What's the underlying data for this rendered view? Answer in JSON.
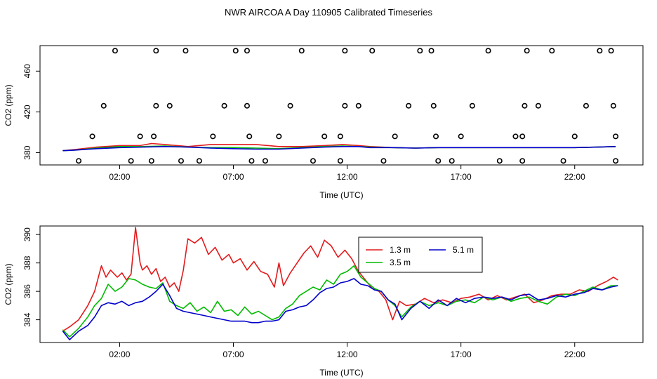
{
  "title": "NWR AIRCOA A  Day 110905  Calibrated Timeseries",
  "chart_data": [
    {
      "type": "scatter",
      "xlabel": "Time (UTC)",
      "ylabel": "CO2 (ppm)",
      "xlim": [
        -1.5,
        25
      ],
      "ylim": [
        368,
        485
      ],
      "xticks": [
        2,
        7,
        12,
        17,
        22
      ],
      "xtick_labels": [
        "02:00",
        "07:00",
        "12:00",
        "17:00",
        "22:00"
      ],
      "yticks": [
        380,
        420,
        460
      ],
      "ytick_labels": [
        "380",
        "420",
        "460"
      ],
      "grid": false,
      "points": [
        [
          0.2,
          372
        ],
        [
          0.8,
          396
        ],
        [
          1.3,
          426
        ],
        [
          1.8,
          480
        ],
        [
          2.5,
          372
        ],
        [
          2.9,
          396
        ],
        [
          3.4,
          372
        ],
        [
          3.5,
          396
        ],
        [
          3.6,
          426
        ],
        [
          3.6,
          480
        ],
        [
          4.2,
          426
        ],
        [
          4.7,
          372
        ],
        [
          4.9,
          480
        ],
        [
          5.5,
          372
        ],
        [
          6.1,
          396
        ],
        [
          6.6,
          426
        ],
        [
          7.1,
          480
        ],
        [
          7.6,
          480
        ],
        [
          7.6,
          426
        ],
        [
          7.7,
          396
        ],
        [
          7.8,
          372
        ],
        [
          8.4,
          372
        ],
        [
          9.0,
          396
        ],
        [
          9.5,
          426
        ],
        [
          10.0,
          480
        ],
        [
          10.5,
          372
        ],
        [
          11.0,
          396
        ],
        [
          11.7,
          396
        ],
        [
          11.7,
          372
        ],
        [
          11.9,
          426
        ],
        [
          11.9,
          480
        ],
        [
          12.5,
          426
        ],
        [
          13.1,
          480
        ],
        [
          13.6,
          372
        ],
        [
          14.1,
          396
        ],
        [
          14.7,
          426
        ],
        [
          15.2,
          480
        ],
        [
          15.7,
          480
        ],
        [
          15.8,
          426
        ],
        [
          15.9,
          396
        ],
        [
          16.0,
          372
        ],
        [
          16.6,
          372
        ],
        [
          17.0,
          396
        ],
        [
          17.5,
          426
        ],
        [
          18.2,
          480
        ],
        [
          18.7,
          372
        ],
        [
          19.4,
          396
        ],
        [
          19.7,
          396
        ],
        [
          19.8,
          426
        ],
        [
          19.9,
          480
        ],
        [
          19.7,
          372
        ],
        [
          20.4,
          426
        ],
        [
          21.0,
          480
        ],
        [
          21.5,
          372
        ],
        [
          22.0,
          396
        ],
        [
          22.5,
          426
        ],
        [
          23.1,
          480
        ],
        [
          23.6,
          480
        ],
        [
          23.7,
          426
        ],
        [
          23.8,
          396
        ],
        [
          23.8,
          372
        ]
      ],
      "series": [
        {
          "label": "1.3 m",
          "color": "#e31a1c",
          "x": [
            -0.5,
            0,
            1,
            2,
            2.9,
            3.4,
            4,
            5,
            6,
            7,
            8,
            9,
            10,
            11,
            11.8,
            12.5,
            13,
            14,
            15,
            16,
            17,
            18,
            19,
            20,
            21,
            22,
            23,
            23.8
          ],
          "y": [
            382,
            383,
            385.5,
            387,
            387,
            389,
            388,
            386,
            388,
            388,
            388,
            386,
            386,
            387,
            388,
            387,
            386,
            385,
            384.5,
            385,
            385,
            385,
            385,
            385,
            385,
            385,
            385.5,
            386
          ]
        },
        {
          "label": "3.5 m",
          "color": "#00bb00",
          "x": [
            -0.5,
            0,
            1,
            2,
            3,
            4,
            5,
            6,
            7,
            8,
            9,
            10,
            11,
            11.8,
            12.5,
            13,
            14,
            15,
            16,
            17,
            18,
            19,
            20,
            21,
            22,
            23,
            23.8
          ],
          "y": [
            382,
            382.5,
            384.5,
            386,
            386,
            386.5,
            385.5,
            385,
            385,
            384.5,
            384,
            385,
            386,
            386.5,
            386,
            385.5,
            385,
            384.5,
            385,
            385,
            385,
            385,
            385,
            385,
            385,
            385.5,
            386
          ]
        },
        {
          "label": "5.1 m",
          "color": "#0000cc",
          "x": [
            -0.5,
            0,
            1,
            2,
            3,
            4,
            5,
            6,
            7,
            8,
            9,
            10,
            11,
            11.8,
            12.5,
            13,
            14,
            15,
            16,
            17,
            18,
            19,
            20,
            21,
            22,
            23,
            23.8
          ],
          "y": [
            382,
            382.5,
            384,
            385,
            385.5,
            386,
            385.5,
            384.5,
            384,
            383.5,
            383.5,
            384.5,
            385.5,
            386,
            386,
            385,
            385,
            384.5,
            385,
            385,
            385,
            385,
            385,
            385,
            385,
            385.5,
            386
          ]
        }
      ]
    },
    {
      "type": "line",
      "xlabel": "Time (UTC)",
      "ylabel": "CO2 (ppm)",
      "xlim": [
        -1.5,
        25
      ],
      "ylim": [
        382.4,
        390.6
      ],
      "xticks": [
        2,
        7,
        12,
        17,
        22
      ],
      "xtick_labels": [
        "02:00",
        "07:00",
        "12:00",
        "17:00",
        "22:00"
      ],
      "yticks": [
        384,
        386,
        388,
        390
      ],
      "ytick_labels": [
        "384",
        "386",
        "388",
        "390"
      ],
      "grid": false,
      "legend": [
        {
          "label": "1.3 m",
          "color": "#e31a1c"
        },
        {
          "label": "5.1 m",
          "color": "#0000cc"
        },
        {
          "label": "3.5 m",
          "color": "#00bb00"
        }
      ],
      "series": [
        {
          "name": "1.3 m",
          "color": "#e31a1c",
          "x": [
            -0.5,
            -0.2,
            0.2,
            0.6,
            0.9,
            1.2,
            1.4,
            1.6,
            1.9,
            2.1,
            2.3,
            2.5,
            2.7,
            2.9,
            3.0,
            3.2,
            3.4,
            3.6,
            3.8,
            4.0,
            4.2,
            4.4,
            4.6,
            4.8,
            5.0,
            5.3,
            5.6,
            5.9,
            6.2,
            6.5,
            6.8,
            7.0,
            7.3,
            7.6,
            7.9,
            8.2,
            8.5,
            8.8,
            9.0,
            9.2,
            9.5,
            9.8,
            10.1,
            10.4,
            10.7,
            11.0,
            11.3,
            11.6,
            11.9,
            12.2,
            12.5,
            12.8,
            13.1,
            13.4,
            13.7,
            14.0,
            14.3,
            14.6,
            15.0,
            15.4,
            15.8,
            16.2,
            16.6,
            17.0,
            17.4,
            17.8,
            18.2,
            18.6,
            19.0,
            19.4,
            19.8,
            20.2,
            20.6,
            21.0,
            21.4,
            21.8,
            22.2,
            22.6,
            23.0,
            23.4,
            23.7,
            23.9
          ],
          "y": [
            383.2,
            383.5,
            384.0,
            385.0,
            386.0,
            387.8,
            387.0,
            387.5,
            387.0,
            387.3,
            386.8,
            387.2,
            390.5,
            388.0,
            387.5,
            387.8,
            387.2,
            387.6,
            386.7,
            387.0,
            386.3,
            386.6,
            386.0,
            387.5,
            389.7,
            389.4,
            389.8,
            388.6,
            389.1,
            388.2,
            388.6,
            388.0,
            388.3,
            387.5,
            388.1,
            387.4,
            387.2,
            386.3,
            388.0,
            386.4,
            387.3,
            388.0,
            388.7,
            389.2,
            388.4,
            389.6,
            389.2,
            388.4,
            388.9,
            388.3,
            387.4,
            386.8,
            386.2,
            386.0,
            385.4,
            384.0,
            385.3,
            385.0,
            385.1,
            385.5,
            385.2,
            385.4,
            385.2,
            385.5,
            385.6,
            385.8,
            385.4,
            385.7,
            385.4,
            385.6,
            385.8,
            385.2,
            385.4,
            385.7,
            385.8,
            385.8,
            386.1,
            386.0,
            386.4,
            386.7,
            387.0,
            386.8
          ]
        },
        {
          "name": "3.5 m",
          "color": "#00bb00",
          "x": [
            -0.5,
            -0.2,
            0.2,
            0.6,
            0.9,
            1.2,
            1.5,
            1.8,
            2.1,
            2.4,
            2.7,
            3.0,
            3.3,
            3.6,
            3.9,
            4.2,
            4.5,
            4.8,
            5.1,
            5.4,
            5.7,
            6.0,
            6.3,
            6.6,
            6.9,
            7.2,
            7.5,
            7.8,
            8.1,
            8.4,
            8.7,
            9.0,
            9.3,
            9.6,
            9.9,
            10.2,
            10.5,
            10.8,
            11.1,
            11.4,
            11.7,
            12.0,
            12.3,
            12.6,
            12.9,
            13.2,
            13.5,
            13.8,
            14.1,
            14.4,
            14.8,
            15.2,
            15.6,
            16.0,
            16.4,
            16.8,
            17.2,
            17.6,
            18.0,
            18.4,
            18.8,
            19.2,
            19.6,
            20.0,
            20.4,
            20.8,
            21.2,
            21.6,
            22.0,
            22.4,
            22.8,
            23.2,
            23.6,
            23.9
          ],
          "y": [
            383.3,
            382.8,
            383.4,
            384.2,
            385.0,
            385.5,
            386.5,
            386.0,
            386.3,
            386.9,
            386.8,
            386.5,
            386.3,
            386.2,
            386.6,
            385.3,
            385.0,
            384.8,
            385.2,
            384.6,
            384.9,
            384.5,
            385.3,
            384.6,
            384.7,
            384.3,
            384.9,
            384.4,
            384.6,
            384.3,
            384.0,
            384.2,
            384.8,
            385.1,
            385.7,
            386.0,
            386.3,
            386.1,
            386.8,
            386.5,
            387.2,
            387.4,
            387.8,
            387.0,
            386.6,
            386.2,
            386.0,
            385.4,
            385.0,
            384.2,
            384.9,
            385.3,
            385.0,
            385.2,
            385.0,
            385.3,
            385.4,
            385.2,
            385.6,
            385.4,
            385.6,
            385.3,
            385.5,
            385.6,
            385.3,
            385.1,
            385.6,
            385.8,
            385.7,
            386.0,
            386.3,
            386.1,
            386.4,
            386.4
          ]
        },
        {
          "name": "5.1 m",
          "color": "#0000cc",
          "x": [
            -0.5,
            -0.2,
            0.2,
            0.6,
            0.9,
            1.2,
            1.5,
            1.8,
            2.1,
            2.4,
            2.7,
            3.0,
            3.3,
            3.6,
            3.9,
            4.2,
            4.5,
            4.8,
            5.1,
            5.4,
            5.7,
            6.0,
            6.3,
            6.6,
            6.9,
            7.2,
            7.5,
            7.8,
            8.1,
            8.4,
            8.7,
            9.0,
            9.3,
            9.6,
            9.9,
            10.2,
            10.5,
            10.8,
            11.1,
            11.4,
            11.7,
            12.0,
            12.3,
            12.6,
            12.9,
            13.2,
            13.5,
            13.8,
            14.1,
            14.4,
            14.8,
            15.2,
            15.6,
            16.0,
            16.4,
            16.8,
            17.2,
            17.6,
            18.0,
            18.4,
            18.8,
            19.2,
            19.6,
            20.0,
            20.4,
            20.8,
            21.2,
            21.6,
            22.0,
            22.4,
            22.8,
            23.2,
            23.6,
            23.9
          ],
          "y": [
            383.2,
            382.6,
            383.2,
            383.6,
            384.2,
            385.0,
            385.2,
            385.1,
            385.3,
            385.0,
            385.2,
            385.3,
            385.6,
            386.0,
            386.5,
            385.7,
            384.8,
            384.6,
            384.5,
            384.4,
            384.3,
            384.2,
            384.1,
            384.0,
            383.9,
            383.9,
            383.9,
            383.8,
            383.8,
            383.9,
            383.9,
            384.0,
            384.6,
            384.7,
            384.9,
            385.0,
            385.4,
            385.9,
            386.2,
            386.3,
            386.6,
            386.7,
            386.9,
            386.5,
            386.4,
            386.1,
            386.0,
            385.4,
            385.1,
            384.0,
            384.8,
            385.3,
            384.8,
            385.4,
            385.0,
            385.5,
            385.2,
            385.5,
            385.6,
            385.5,
            385.6,
            385.4,
            385.7,
            385.8,
            385.4,
            385.5,
            385.7,
            385.6,
            385.8,
            385.9,
            386.2,
            386.1,
            386.3,
            386.4
          ]
        }
      ]
    }
  ]
}
